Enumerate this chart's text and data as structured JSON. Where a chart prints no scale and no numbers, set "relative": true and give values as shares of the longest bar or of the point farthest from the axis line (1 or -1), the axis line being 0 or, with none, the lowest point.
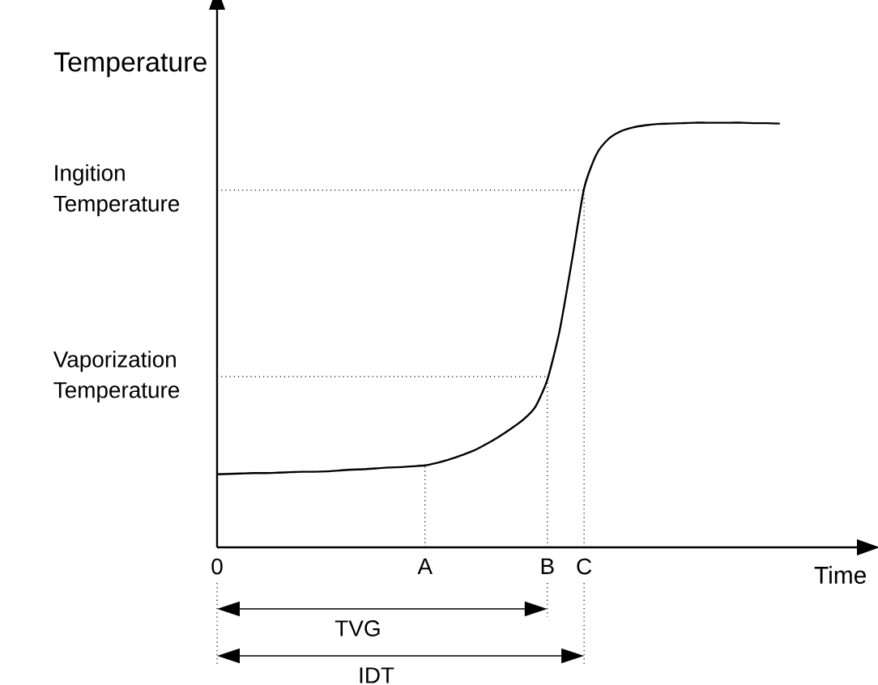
{
  "chart_data": {
    "type": "line",
    "relative": true,
    "xlabel": "Time",
    "ylabel": "Temperature",
    "categories": [
      "0",
      null,
      null,
      null,
      null,
      null,
      null,
      null,
      null,
      null,
      null,
      null,
      null,
      null,
      null,
      null,
      null,
      "A",
      null,
      null,
      null,
      null,
      null,
      null,
      null,
      null,
      null,
      "B",
      null,
      null,
      "C",
      null,
      null,
      null,
      null,
      null,
      null,
      null,
      null,
      null,
      null,
      null,
      null,
      null,
      null,
      null,
      null
    ],
    "series": [
      {
        "color": "#000000",
        "values": [
          0.172,
          0.173,
          0.174,
          0.175,
          0.175,
          0.176,
          0.177,
          0.178,
          0.178,
          0.179,
          0.181,
          0.183,
          0.184,
          0.186,
          0.188,
          0.189,
          0.191,
          0.193,
          0.199,
          0.207,
          0.217,
          0.228,
          0.243,
          0.26,
          0.279,
          0.3,
          0.33,
          0.395,
          0.51,
          0.674,
          0.845,
          0.925,
          0.962,
          0.98,
          0.989,
          0.994,
          0.997,
          0.998,
          0.999,
          1.0,
          1.0,
          1.0,
          1.0,
          1.0,
          0.999,
          0.999,
          0.998
        ]
      }
    ],
    "ref_lines": [
      {
        "axis": "y",
        "value": 0.841,
        "label": "Ingition\nTemperature",
        "line_style": "dotted"
      },
      {
        "axis": "y",
        "value": 0.402,
        "label": "Vaporization\nTemperature",
        "line_style": "dotted"
      },
      {
        "axis": "x",
        "value": "A",
        "line_style": "dotted"
      },
      {
        "axis": "x",
        "value": "B",
        "line_style": "dotted"
      },
      {
        "axis": "x",
        "value": "C",
        "line_style": "dotted"
      }
    ],
    "annotations": [
      "TVG",
      "IDT"
    ],
    "marker": "none",
    "line_style": "solid"
  }
}
